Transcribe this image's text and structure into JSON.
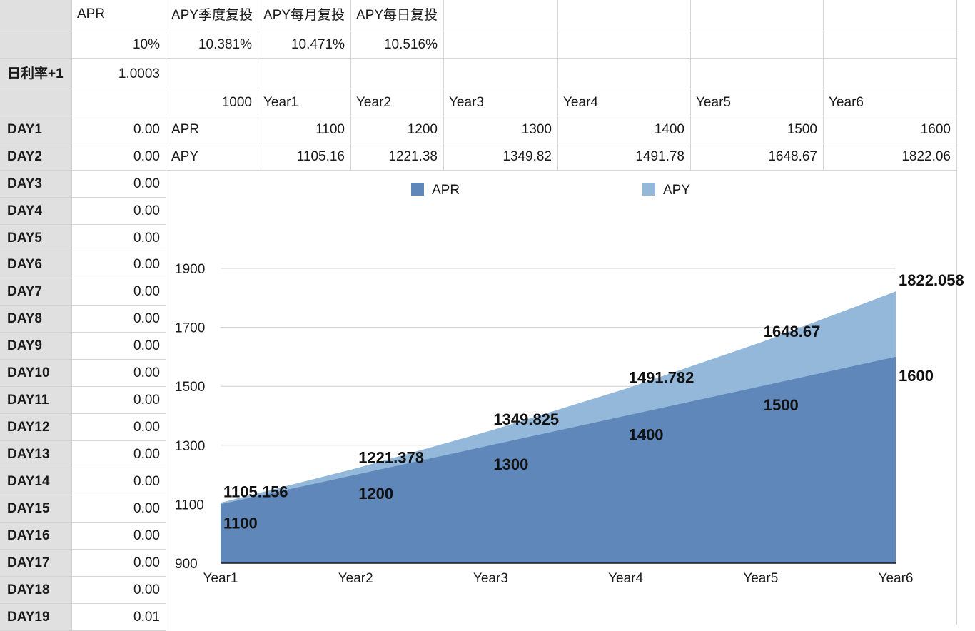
{
  "header_row": {
    "col_b": "APR",
    "col_c": "APY季度复投",
    "col_d": "APY每月复投",
    "col_e": "APY每日复投"
  },
  "rates_row": {
    "apr": "10%",
    "apy_quarterly": "10.381%",
    "apy_monthly": "10.471%",
    "apy_daily": "10.516%"
  },
  "daily_rate_row": {
    "label": "日利率+1",
    "value": "1.0003"
  },
  "years_row": {
    "principal": "1000",
    "years": [
      "Year1",
      "Year2",
      "Year3",
      "Year4",
      "Year5",
      "Year6"
    ]
  },
  "apr_row": {
    "label": "APR",
    "values": [
      "1100",
      "1200",
      "1300",
      "1400",
      "1500",
      "1600"
    ]
  },
  "apy_row": {
    "label": "APY",
    "values": [
      "1105.16",
      "1221.38",
      "1349.82",
      "1491.78",
      "1648.67",
      "1822.06"
    ]
  },
  "day_rows": [
    {
      "label": "DAY1",
      "value": "0.00"
    },
    {
      "label": "DAY2",
      "value": "0.00"
    },
    {
      "label": "DAY3",
      "value": "0.00"
    },
    {
      "label": "DAY4",
      "value": "0.00"
    },
    {
      "label": "DAY5",
      "value": "0.00"
    },
    {
      "label": "DAY6",
      "value": "0.00"
    },
    {
      "label": "DAY7",
      "value": "0.00"
    },
    {
      "label": "DAY8",
      "value": "0.00"
    },
    {
      "label": "DAY9",
      "value": "0.00"
    },
    {
      "label": "DAY10",
      "value": "0.00"
    },
    {
      "label": "DAY11",
      "value": "0.00"
    },
    {
      "label": "DAY12",
      "value": "0.00"
    },
    {
      "label": "DAY13",
      "value": "0.00"
    },
    {
      "label": "DAY14",
      "value": "0.00"
    },
    {
      "label": "DAY15",
      "value": "0.00"
    },
    {
      "label": "DAY16",
      "value": "0.00"
    },
    {
      "label": "DAY17",
      "value": "0.00"
    },
    {
      "label": "DAY18",
      "value": "0.00"
    },
    {
      "label": "DAY19",
      "value": "0.01"
    }
  ],
  "colors": {
    "apr_fill": "#5f87b9",
    "apy_fill": "#93b8da",
    "header_bg": "#e0e0e0",
    "grid_line": "#d4d4d4"
  },
  "chart_data": {
    "type": "area",
    "categories": [
      "Year1",
      "Year2",
      "Year3",
      "Year4",
      "Year5",
      "Year6"
    ],
    "series": [
      {
        "name": "APR",
        "values": [
          1100,
          1200,
          1300,
          1400,
          1500,
          1600
        ],
        "labels": [
          "1100",
          "1200",
          "1300",
          "1400",
          "1500",
          "1600"
        ]
      },
      {
        "name": "APY",
        "values": [
          1105.156,
          1221.378,
          1349.825,
          1491.782,
          1648.67,
          1822.058
        ],
        "labels": [
          "1105.156",
          "1221.378",
          "1349.825",
          "1491.782",
          "1648.67",
          "1822.058"
        ]
      }
    ],
    "yticks": [
      "900",
      "1100",
      "1300",
      "1500",
      "1700",
      "1900"
    ],
    "ylim": [
      900,
      1900
    ],
    "grid": true,
    "legend": "top"
  }
}
